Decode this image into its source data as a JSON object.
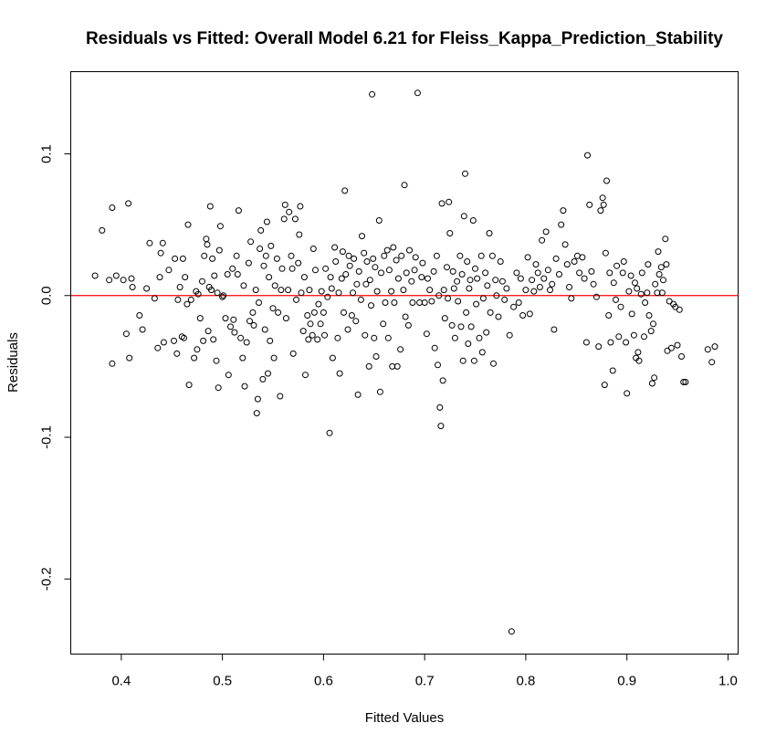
{
  "chart_data": {
    "type": "scatter",
    "title": "Residuals vs Fitted: Overall Model 6.21 for Fleiss_Kappa_Prediction_Stability",
    "xlabel": "Fitted Values",
    "ylabel": "Residuals",
    "xlim": [
      0.35,
      1.01
    ],
    "ylim": [
      -0.253,
      0.158
    ],
    "x_ticks": [
      0.4,
      0.5,
      0.6,
      0.7,
      0.8,
      0.9,
      1.0
    ],
    "x_tick_labels": [
      "0.4",
      "0.5",
      "0.6",
      "0.7",
      "0.8",
      "0.9",
      "1.0"
    ],
    "y_ticks": [
      -0.2,
      -0.1,
      0.0,
      0.1
    ],
    "y_tick_labels": [
      "-0.2",
      "-0.1",
      "0.0",
      "0.1"
    ],
    "reference_line": {
      "y": 0.0,
      "color": "#ff0000"
    },
    "marker": "open-circle",
    "grid": false,
    "points": [
      [
        0.374,
        0.014
      ],
      [
        0.381,
        0.046
      ],
      [
        0.388,
        0.011
      ],
      [
        0.391,
        0.062
      ],
      [
        0.391,
        -0.048
      ],
      [
        0.395,
        0.014
      ],
      [
        0.402,
        0.011
      ],
      [
        0.405,
        -0.027
      ],
      [
        0.407,
        0.065
      ],
      [
        0.408,
        -0.044
      ],
      [
        0.41,
        0.012
      ],
      [
        0.411,
        0.006
      ],
      [
        0.418,
        -0.014
      ],
      [
        0.421,
        -0.024
      ],
      [
        0.425,
        0.005
      ],
      [
        0.428,
        0.037
      ],
      [
        0.433,
        -0.002
      ],
      [
        0.436,
        -0.037
      ],
      [
        0.438,
        0.013
      ],
      [
        0.439,
        0.03
      ],
      [
        0.441,
        0.037
      ],
      [
        0.442,
        -0.033
      ],
      [
        0.447,
        0.018
      ],
      [
        0.452,
        -0.032
      ],
      [
        0.453,
        0.026
      ],
      [
        0.455,
        -0.041
      ],
      [
        0.456,
        -0.003
      ],
      [
        0.458,
        0.006
      ],
      [
        0.46,
        -0.029
      ],
      [
        0.461,
        0.026
      ],
      [
        0.462,
        -0.03
      ],
      [
        0.463,
        0.013
      ],
      [
        0.465,
        -0.006
      ],
      [
        0.466,
        0.05
      ],
      [
        0.467,
        -0.063
      ],
      [
        0.469,
        -0.003
      ],
      [
        0.472,
        -0.044
      ],
      [
        0.474,
        0.003
      ],
      [
        0.475,
        -0.038
      ],
      [
        0.476,
        0.001
      ],
      [
        0.478,
        -0.016
      ],
      [
        0.48,
        0.01
      ],
      [
        0.481,
        -0.032
      ],
      [
        0.482,
        0.028
      ],
      [
        0.484,
        0.04
      ],
      [
        0.485,
        0.036
      ],
      [
        0.486,
        -0.025
      ],
      [
        0.487,
        0.006
      ],
      [
        0.488,
        0.063
      ],
      [
        0.489,
        0.004
      ],
      [
        0.49,
        0.026
      ],
      [
        0.491,
        -0.031
      ],
      [
        0.492,
        0.014
      ],
      [
        0.494,
        -0.046
      ],
      [
        0.495,
        0.002
      ],
      [
        0.496,
        -0.065
      ],
      [
        0.497,
        0.032
      ],
      [
        0.498,
        0.049
      ],
      [
        0.5,
        -0.001
      ],
      [
        0.501,
        0.0
      ],
      [
        0.503,
        -0.016
      ],
      [
        0.505,
        0.015
      ],
      [
        0.506,
        -0.056
      ],
      [
        0.508,
        -0.022
      ],
      [
        0.51,
        0.019
      ],
      [
        0.511,
        -0.017
      ],
      [
        0.512,
        -0.026
      ],
      [
        0.514,
        0.028
      ],
      [
        0.515,
        0.015
      ],
      [
        0.516,
        0.06
      ],
      [
        0.518,
        -0.03
      ],
      [
        0.52,
        -0.044
      ],
      [
        0.521,
        0.007
      ],
      [
        0.522,
        -0.064
      ],
      [
        0.524,
        -0.033
      ],
      [
        0.526,
        0.023
      ],
      [
        0.527,
        -0.018
      ],
      [
        0.528,
        0.038
      ],
      [
        0.53,
        -0.012
      ],
      [
        0.531,
        -0.021
      ],
      [
        0.533,
        0.004
      ],
      [
        0.534,
        -0.083
      ],
      [
        0.535,
        -0.073
      ],
      [
        0.536,
        -0.005
      ],
      [
        0.537,
        0.033
      ],
      [
        0.538,
        0.046
      ],
      [
        0.54,
        -0.059
      ],
      [
        0.541,
        0.021
      ],
      [
        0.542,
        -0.024
      ],
      [
        0.543,
        0.028
      ],
      [
        0.544,
        0.052
      ],
      [
        0.545,
        -0.055
      ],
      [
        0.546,
        0.013
      ],
      [
        0.547,
        -0.032
      ],
      [
        0.548,
        0.035
      ],
      [
        0.55,
        -0.009
      ],
      [
        0.551,
        -0.044
      ],
      [
        0.552,
        0.007
      ],
      [
        0.554,
        0.026
      ],
      [
        0.555,
        -0.012
      ],
      [
        0.557,
        -0.071
      ],
      [
        0.558,
        0.004
      ],
      [
        0.559,
        0.019
      ],
      [
        0.561,
        0.054
      ],
      [
        0.562,
        0.064
      ],
      [
        0.563,
        -0.016
      ],
      [
        0.565,
        0.004
      ],
      [
        0.566,
        0.059
      ],
      [
        0.568,
        0.028
      ],
      [
        0.569,
        0.019
      ],
      [
        0.57,
        -0.041
      ],
      [
        0.572,
        0.054
      ],
      [
        0.573,
        -0.003
      ],
      [
        0.575,
        0.023
      ],
      [
        0.576,
        0.043
      ],
      [
        0.577,
        0.063
      ],
      [
        0.578,
        0.002
      ],
      [
        0.58,
        -0.025
      ],
      [
        0.581,
        0.013
      ],
      [
        0.582,
        -0.056
      ],
      [
        0.584,
        -0.014
      ],
      [
        0.585,
        -0.031
      ],
      [
        0.586,
        0.004
      ],
      [
        0.587,
        -0.02
      ],
      [
        0.589,
        -0.028
      ],
      [
        0.59,
        0.033
      ],
      [
        0.591,
        -0.012
      ],
      [
        0.592,
        0.018
      ],
      [
        0.594,
        -0.031
      ],
      [
        0.595,
        -0.006
      ],
      [
        0.597,
        -0.02
      ],
      [
        0.598,
        0.003
      ],
      [
        0.6,
        -0.012
      ],
      [
        0.601,
        -0.028
      ],
      [
        0.602,
        0.019
      ],
      [
        0.604,
        -0.001
      ],
      [
        0.606,
        -0.097
      ],
      [
        0.607,
        0.013
      ],
      [
        0.608,
        0.005
      ],
      [
        0.609,
        -0.044
      ],
      [
        0.611,
        0.034
      ],
      [
        0.612,
        0.024
      ],
      [
        0.614,
        -0.03
      ],
      [
        0.615,
        0.002
      ],
      [
        0.616,
        -0.055
      ],
      [
        0.618,
        0.012
      ],
      [
        0.619,
        0.031
      ],
      [
        0.62,
        -0.012
      ],
      [
        0.621,
        0.074
      ],
      [
        0.622,
        0.015
      ],
      [
        0.624,
        -0.024
      ],
      [
        0.625,
        0.028
      ],
      [
        0.626,
        0.021
      ],
      [
        0.628,
        -0.014
      ],
      [
        0.629,
        0.002
      ],
      [
        0.63,
        0.026
      ],
      [
        0.632,
        -0.018
      ],
      [
        0.633,
        0.008
      ],
      [
        0.634,
        -0.07
      ],
      [
        0.635,
        0.017
      ],
      [
        0.637,
        -0.003
      ],
      [
        0.638,
        0.042
      ],
      [
        0.64,
        0.03
      ],
      [
        0.641,
        -0.028
      ],
      [
        0.642,
        0.008
      ],
      [
        0.643,
        0.024
      ],
      [
        0.645,
        -0.05
      ],
      [
        0.646,
        0.011
      ],
      [
        0.647,
        -0.007
      ],
      [
        0.648,
        0.142
      ],
      [
        0.649,
        0.026
      ],
      [
        0.65,
        -0.03
      ],
      [
        0.651,
        0.02
      ],
      [
        0.652,
        -0.043
      ],
      [
        0.653,
        0.003
      ],
      [
        0.655,
        0.053
      ],
      [
        0.656,
        -0.068
      ],
      [
        0.657,
        0.016
      ],
      [
        0.659,
        -0.02
      ],
      [
        0.66,
        0.028
      ],
      [
        0.661,
        -0.005
      ],
      [
        0.663,
        0.032
      ],
      [
        0.664,
        -0.03
      ],
      [
        0.665,
        0.018
      ],
      [
        0.667,
        0.003
      ],
      [
        0.668,
        -0.05
      ],
      [
        0.669,
        0.034
      ],
      [
        0.67,
        -0.005
      ],
      [
        0.672,
        0.025
      ],
      [
        0.673,
        -0.05
      ],
      [
        0.674,
        0.012
      ],
      [
        0.676,
        -0.038
      ],
      [
        0.677,
        0.028
      ],
      [
        0.679,
        0.004
      ],
      [
        0.68,
        0.078
      ],
      [
        0.681,
        -0.015
      ],
      [
        0.682,
        0.016
      ],
      [
        0.684,
        -0.021
      ],
      [
        0.685,
        0.032
      ],
      [
        0.687,
        0.01
      ],
      [
        0.688,
        -0.005
      ],
      [
        0.69,
        0.018
      ],
      [
        0.691,
        0.027
      ],
      [
        0.693,
        0.143
      ],
      [
        0.695,
        -0.005
      ],
      [
        0.697,
        0.013
      ],
      [
        0.698,
        0.023
      ],
      [
        0.7,
        -0.005
      ],
      [
        0.702,
        -0.027
      ],
      [
        0.703,
        0.012
      ],
      [
        0.705,
        0.004
      ],
      [
        0.707,
        -0.004
      ],
      [
        0.709,
        0.017
      ],
      [
        0.71,
        -0.037
      ],
      [
        0.712,
        0.028
      ],
      [
        0.713,
        -0.049
      ],
      [
        0.714,
        0.0
      ],
      [
        0.715,
        -0.079
      ],
      [
        0.716,
        -0.092
      ],
      [
        0.717,
        0.065
      ],
      [
        0.718,
        -0.06
      ],
      [
        0.719,
        0.004
      ],
      [
        0.72,
        -0.016
      ],
      [
        0.722,
        0.02
      ],
      [
        0.723,
        -0.002
      ],
      [
        0.724,
        0.066
      ],
      [
        0.725,
        0.044
      ],
      [
        0.727,
        -0.021
      ],
      [
        0.728,
        0.017
      ],
      [
        0.729,
        0.005
      ],
      [
        0.73,
        -0.03
      ],
      [
        0.732,
        0.01
      ],
      [
        0.733,
        -0.004
      ],
      [
        0.735,
        0.028
      ],
      [
        0.736,
        -0.022
      ],
      [
        0.737,
        0.015
      ],
      [
        0.738,
        -0.046
      ],
      [
        0.739,
        0.056
      ],
      [
        0.74,
        0.086
      ],
      [
        0.741,
        -0.012
      ],
      [
        0.742,
        0.024
      ],
      [
        0.743,
        -0.034
      ],
      [
        0.744,
        0.005
      ],
      [
        0.745,
        0.011
      ],
      [
        0.746,
        -0.022
      ],
      [
        0.748,
        0.053
      ],
      [
        0.749,
        -0.046
      ],
      [
        0.75,
        0.019
      ],
      [
        0.751,
        -0.006
      ],
      [
        0.752,
        0.012
      ],
      [
        0.754,
        -0.03
      ],
      [
        0.756,
        0.028
      ],
      [
        0.757,
        -0.04
      ],
      [
        0.758,
        -0.002
      ],
      [
        0.76,
        0.016
      ],
      [
        0.761,
        -0.026
      ],
      [
        0.762,
        0.007
      ],
      [
        0.764,
        0.044
      ],
      [
        0.765,
        -0.012
      ],
      [
        0.767,
        0.028
      ],
      [
        0.768,
        -0.048
      ],
      [
        0.77,
        0.011
      ],
      [
        0.771,
        0.0
      ],
      [
        0.773,
        -0.015
      ],
      [
        0.775,
        0.024
      ],
      [
        0.777,
        0.01
      ],
      [
        0.779,
        -0.003
      ],
      [
        0.781,
        0.005
      ],
      [
        0.784,
        -0.028
      ],
      [
        0.786,
        -0.237
      ],
      [
        0.788,
        -0.008
      ],
      [
        0.791,
        0.016
      ],
      [
        0.793,
        -0.005
      ],
      [
        0.795,
        0.012
      ],
      [
        0.797,
        -0.014
      ],
      [
        0.8,
        0.004
      ],
      [
        0.802,
        0.027
      ],
      [
        0.804,
        -0.013
      ],
      [
        0.806,
        0.011
      ],
      [
        0.808,
        0.003
      ],
      [
        0.81,
        0.022
      ],
      [
        0.812,
        0.016
      ],
      [
        0.814,
        0.006
      ],
      [
        0.816,
        0.039
      ],
      [
        0.818,
        0.012
      ],
      [
        0.82,
        0.045
      ],
      [
        0.822,
        0.018
      ],
      [
        0.824,
        0.004
      ],
      [
        0.826,
        0.008
      ],
      [
        0.828,
        -0.024
      ],
      [
        0.83,
        0.026
      ],
      [
        0.833,
        0.015
      ],
      [
        0.835,
        0.05
      ],
      [
        0.837,
        0.06
      ],
      [
        0.839,
        0.036
      ],
      [
        0.841,
        0.022
      ],
      [
        0.843,
        0.006
      ],
      [
        0.845,
        -0.002
      ],
      [
        0.848,
        0.024
      ],
      [
        0.851,
        0.028
      ],
      [
        0.853,
        0.016
      ],
      [
        0.856,
        0.027
      ],
      [
        0.858,
        0.012
      ],
      [
        0.86,
        -0.033
      ],
      [
        0.861,
        0.099
      ],
      [
        0.863,
        0.064
      ],
      [
        0.865,
        0.017
      ],
      [
        0.867,
        0.008
      ],
      [
        0.87,
        -0.001
      ],
      [
        0.872,
        -0.036
      ],
      [
        0.874,
        0.06
      ],
      [
        0.876,
        0.069
      ],
      [
        0.877,
        0.064
      ],
      [
        0.878,
        -0.063
      ],
      [
        0.879,
        0.03
      ],
      [
        0.88,
        0.081
      ],
      [
        0.882,
        -0.014
      ],
      [
        0.883,
        0.016
      ],
      [
        0.884,
        -0.033
      ],
      [
        0.886,
        -0.053
      ],
      [
        0.887,
        0.009
      ],
      [
        0.889,
        -0.003
      ],
      [
        0.89,
        0.021
      ],
      [
        0.892,
        -0.029
      ],
      [
        0.894,
        -0.008
      ],
      [
        0.896,
        0.016
      ],
      [
        0.897,
        0.024
      ],
      [
        0.899,
        -0.033
      ],
      [
        0.9,
        -0.069
      ],
      [
        0.902,
        0.003
      ],
      [
        0.904,
        0.014
      ],
      [
        0.905,
        -0.013
      ],
      [
        0.907,
        -0.028
      ],
      [
        0.908,
        0.009
      ],
      [
        0.909,
        -0.044
      ],
      [
        0.91,
        0.005
      ],
      [
        0.911,
        -0.04
      ],
      [
        0.912,
        -0.046
      ],
      [
        0.914,
        0.001
      ],
      [
        0.915,
        0.016
      ],
      [
        0.917,
        -0.029
      ],
      [
        0.918,
        -0.005
      ],
      [
        0.92,
        0.002
      ],
      [
        0.921,
        0.022
      ],
      [
        0.922,
        -0.014
      ],
      [
        0.924,
        -0.025
      ],
      [
        0.925,
        -0.062
      ],
      [
        0.926,
        -0.02
      ],
      [
        0.927,
        -0.058
      ],
      [
        0.928,
        0.008
      ],
      [
        0.93,
        0.002
      ],
      [
        0.931,
        0.031
      ],
      [
        0.932,
        0.015
      ],
      [
        0.934,
        0.02
      ],
      [
        0.935,
        0.002
      ],
      [
        0.936,
        0.011
      ],
      [
        0.938,
        0.04
      ],
      [
        0.939,
        0.022
      ],
      [
        0.94,
        -0.039
      ],
      [
        0.942,
        -0.004
      ],
      [
        0.944,
        -0.037
      ],
      [
        0.946,
        -0.006
      ],
      [
        0.948,
        -0.008
      ],
      [
        0.95,
        -0.035
      ],
      [
        0.952,
        -0.01
      ],
      [
        0.954,
        -0.043
      ],
      [
        0.956,
        -0.061
      ],
      [
        0.958,
        -0.061
      ],
      [
        0.98,
        -0.038
      ],
      [
        0.984,
        -0.047
      ],
      [
        0.987,
        -0.036
      ]
    ]
  }
}
